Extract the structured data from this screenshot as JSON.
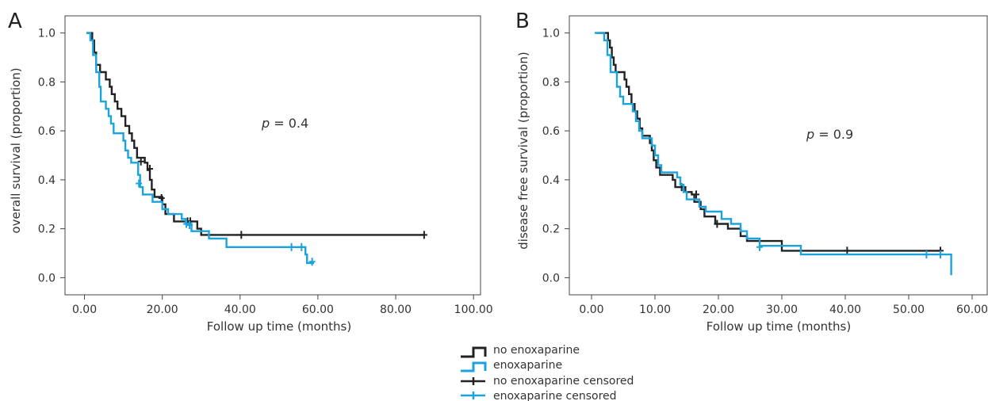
{
  "colors": {
    "black": "#222222",
    "blue": "#1aa3dc",
    "axis": "#444444"
  },
  "legend": {
    "items": [
      {
        "label": "no enoxaparine",
        "color": "#222222",
        "kind": "step"
      },
      {
        "label": "enoxaparine",
        "color": "#1aa3dc",
        "kind": "step"
      },
      {
        "label": "no enoxaparine censored",
        "color": "#222222",
        "kind": "censor"
      },
      {
        "label": "enoxaparine censored",
        "color": "#1aa3dc",
        "kind": "censor"
      }
    ]
  },
  "chart_data": [
    {
      "type": "line",
      "panel": "A",
      "annotation": {
        "p": "p",
        "rest": " = 0.4"
      },
      "xlabel": "Follow up time (months)",
      "ylabel": "overall survival (proportion)",
      "xlim": [
        -5,
        102
      ],
      "ylim": [
        -0.07,
        1.07
      ],
      "xticks": [
        0,
        20,
        40,
        60,
        80,
        100
      ],
      "xtick_labels": [
        "0.00",
        "20.00",
        "40.00",
        "60.00",
        "80.00",
        "100.00"
      ],
      "yticks": [
        0,
        0.2,
        0.4,
        0.6,
        0.8,
        1.0
      ],
      "ytick_labels": [
        "0.0",
        "0.2",
        "0.4",
        "0.6",
        "0.8",
        "1.0"
      ],
      "series": [
        {
          "name": "no enoxaparine",
          "color": "#222222",
          "steps": [
            [
              0.5,
              1.0
            ],
            [
              2,
              0.97
            ],
            [
              2.5,
              0.92
            ],
            [
              3,
              0.87
            ],
            [
              4,
              0.84
            ],
            [
              5.5,
              0.81
            ],
            [
              6.5,
              0.78
            ],
            [
              7,
              0.75
            ],
            [
              7.8,
              0.72
            ],
            [
              8.5,
              0.69
            ],
            [
              9.5,
              0.66
            ],
            [
              10.5,
              0.62
            ],
            [
              11.5,
              0.59
            ],
            [
              12.2,
              0.56
            ],
            [
              12.8,
              0.53
            ],
            [
              13.5,
              0.49
            ],
            [
              15.5,
              0.47
            ],
            [
              16.2,
              0.44
            ],
            [
              16.8,
              0.4
            ],
            [
              17.3,
              0.36
            ],
            [
              18,
              0.33
            ],
            [
              20,
              0.3
            ],
            [
              20.8,
              0.26
            ],
            [
              23,
              0.23
            ],
            [
              26,
              0.23
            ],
            [
              29,
              0.2
            ],
            [
              30,
              0.175
            ],
            [
              87.5,
              0.175
            ]
          ],
          "censored": [
            [
              14.5,
              0.475
            ],
            [
              16.8,
              0.445
            ],
            [
              19.8,
              0.325
            ],
            [
              26.5,
              0.23
            ],
            [
              27.2,
              0.23
            ],
            [
              40.3,
              0.175
            ],
            [
              87.3,
              0.175
            ]
          ]
        },
        {
          "name": "enoxaparine",
          "color": "#1aa3dc",
          "steps": [
            [
              0.5,
              1.0
            ],
            [
              1.5,
              0.97
            ],
            [
              2.2,
              0.91
            ],
            [
              3,
              0.84
            ],
            [
              3.8,
              0.78
            ],
            [
              4.2,
              0.72
            ],
            [
              5.5,
              0.69
            ],
            [
              6.2,
              0.66
            ],
            [
              6.8,
              0.63
            ],
            [
              7.5,
              0.59
            ],
            [
              10,
              0.56
            ],
            [
              10.5,
              0.52
            ],
            [
              11.2,
              0.49
            ],
            [
              12,
              0.47
            ],
            [
              13.8,
              0.42
            ],
            [
              14.3,
              0.37
            ],
            [
              15,
              0.34
            ],
            [
              17.5,
              0.31
            ],
            [
              20,
              0.28
            ],
            [
              21.5,
              0.26
            ],
            [
              25,
              0.24
            ],
            [
              26,
              0.22
            ],
            [
              27.5,
              0.19
            ],
            [
              32,
              0.16
            ],
            [
              36.5,
              0.125
            ],
            [
              55,
              0.125
            ],
            [
              56.8,
              0.095
            ],
            [
              57.2,
              0.06
            ],
            [
              59,
              0.06
            ]
          ],
          "censored": [
            [
              14,
              0.385
            ],
            [
              26.2,
              0.22
            ],
            [
              27,
              0.215
            ],
            [
              53.2,
              0.125
            ],
            [
              55.8,
              0.125
            ],
            [
              58.5,
              0.065
            ]
          ]
        }
      ]
    },
    {
      "type": "line",
      "panel": "B",
      "annotation": {
        "p": "p",
        "rest": " = 0.9"
      },
      "xlabel": "Follow up time (months)",
      "ylabel": "disease free survival (proportion)",
      "xlim": [
        -3.5,
        62.5
      ],
      "ylim": [
        -0.07,
        1.07
      ],
      "xticks": [
        0,
        10,
        20,
        30,
        40,
        50,
        60
      ],
      "xtick_labels": [
        "0.00",
        "10.00",
        "20.00",
        "30.00",
        "40.00",
        "50.00",
        "60.00"
      ],
      "yticks": [
        0,
        0.2,
        0.4,
        0.6,
        0.8,
        1.0
      ],
      "ytick_labels": [
        "0.0",
        "0.2",
        "0.4",
        "0.6",
        "0.8",
        "1.0"
      ],
      "series": [
        {
          "name": "no enoxaparine",
          "color": "#222222",
          "steps": [
            [
              0.8,
              1.0
            ],
            [
              2.6,
              0.97
            ],
            [
              2.9,
              0.94
            ],
            [
              3.2,
              0.9
            ],
            [
              3.5,
              0.87
            ],
            [
              3.8,
              0.84
            ],
            [
              5.2,
              0.81
            ],
            [
              5.5,
              0.78
            ],
            [
              5.9,
              0.75
            ],
            [
              6.3,
              0.71
            ],
            [
              6.8,
              0.68
            ],
            [
              7.2,
              0.65
            ],
            [
              7.6,
              0.61
            ],
            [
              8,
              0.58
            ],
            [
              9.2,
              0.55
            ],
            [
              9.5,
              0.52
            ],
            [
              9.8,
              0.48
            ],
            [
              10.2,
              0.45
            ],
            [
              10.8,
              0.42
            ],
            [
              12.8,
              0.4
            ],
            [
              13.2,
              0.37
            ],
            [
              14.8,
              0.35
            ],
            [
              15.8,
              0.34
            ],
            [
              16.2,
              0.31
            ],
            [
              17.2,
              0.28
            ],
            [
              17.8,
              0.25
            ],
            [
              19.5,
              0.22
            ],
            [
              21.5,
              0.2
            ],
            [
              23.5,
              0.17
            ],
            [
              24.5,
              0.15
            ],
            [
              30,
              0.11
            ],
            [
              55,
              0.11
            ]
          ],
          "censored": [
            [
              14.2,
              0.37
            ],
            [
              16.5,
              0.34
            ],
            [
              19.8,
              0.22
            ],
            [
              40.3,
              0.11
            ],
            [
              55,
              0.11
            ]
          ]
        },
        {
          "name": "enoxaparine",
          "color": "#1aa3dc",
          "steps": [
            [
              0.5,
              1.0
            ],
            [
              2,
              0.97
            ],
            [
              2.5,
              0.91
            ],
            [
              3,
              0.84
            ],
            [
              4,
              0.78
            ],
            [
              4.5,
              0.74
            ],
            [
              5,
              0.71
            ],
            [
              6.5,
              0.68
            ],
            [
              7,
              0.64
            ],
            [
              7.5,
              0.6
            ],
            [
              8,
              0.57
            ],
            [
              9.5,
              0.54
            ],
            [
              10,
              0.5
            ],
            [
              10.5,
              0.46
            ],
            [
              11,
              0.43
            ],
            [
              13.5,
              0.41
            ],
            [
              14,
              0.38
            ],
            [
              14.5,
              0.35
            ],
            [
              15,
              0.32
            ],
            [
              17,
              0.29
            ],
            [
              18,
              0.27
            ],
            [
              20.5,
              0.24
            ],
            [
              22,
              0.22
            ],
            [
              23.5,
              0.19
            ],
            [
              24.5,
              0.16
            ],
            [
              26.5,
              0.13
            ],
            [
              33,
              0.095
            ],
            [
              56.5,
              0.095
            ],
            [
              56.7,
              0.01
            ]
          ],
          "censored": [
            [
              26.5,
              0.125
            ],
            [
              52.8,
              0.095
            ],
            [
              55,
              0.095
            ]
          ]
        }
      ]
    }
  ]
}
